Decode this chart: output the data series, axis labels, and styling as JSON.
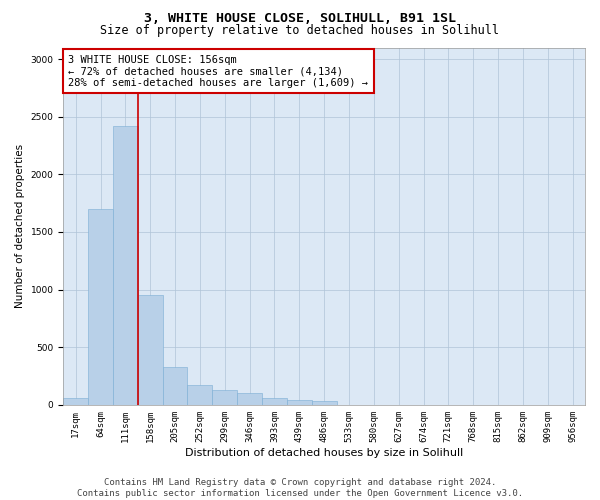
{
  "title1": "3, WHITE HOUSE CLOSE, SOLIHULL, B91 1SL",
  "title2": "Size of property relative to detached houses in Solihull",
  "xlabel": "Distribution of detached houses by size in Solihull",
  "ylabel": "Number of detached properties",
  "footer1": "Contains HM Land Registry data © Crown copyright and database right 2024.",
  "footer2": "Contains public sector information licensed under the Open Government Licence v3.0.",
  "annotation_line1": "3 WHITE HOUSE CLOSE: 156sqm",
  "annotation_line2": "← 72% of detached houses are smaller (4,134)",
  "annotation_line3": "28% of semi-detached houses are larger (1,609) →",
  "bar_color": "#b8d0e8",
  "bar_edge_color": "#7aaed4",
  "marker_line_color": "#cc0000",
  "annotation_box_edge": "#cc0000",
  "background_color": "#ffffff",
  "plot_bg_color": "#dce8f5",
  "grid_color": "#b0c4d8",
  "bin_labels": [
    "17sqm",
    "64sqm",
    "111sqm",
    "158sqm",
    "205sqm",
    "252sqm",
    "299sqm",
    "346sqm",
    "393sqm",
    "439sqm",
    "486sqm",
    "533sqm",
    "580sqm",
    "627sqm",
    "674sqm",
    "721sqm",
    "768sqm",
    "815sqm",
    "862sqm",
    "909sqm",
    "956sqm"
  ],
  "bar_values": [
    60,
    1700,
    2420,
    950,
    330,
    170,
    130,
    100,
    55,
    45,
    35,
    0,
    0,
    0,
    0,
    0,
    0,
    0,
    0,
    0,
    0
  ],
  "marker_bin_index": 3,
  "ylim": [
    0,
    3100
  ],
  "yticks": [
    0,
    500,
    1000,
    1500,
    2000,
    2500,
    3000
  ],
  "title1_fontsize": 9.5,
  "title2_fontsize": 8.5,
  "xlabel_fontsize": 8,
  "ylabel_fontsize": 7.5,
  "tick_fontsize": 6.5,
  "annotation_fontsize": 7.5,
  "footer_fontsize": 6.5
}
